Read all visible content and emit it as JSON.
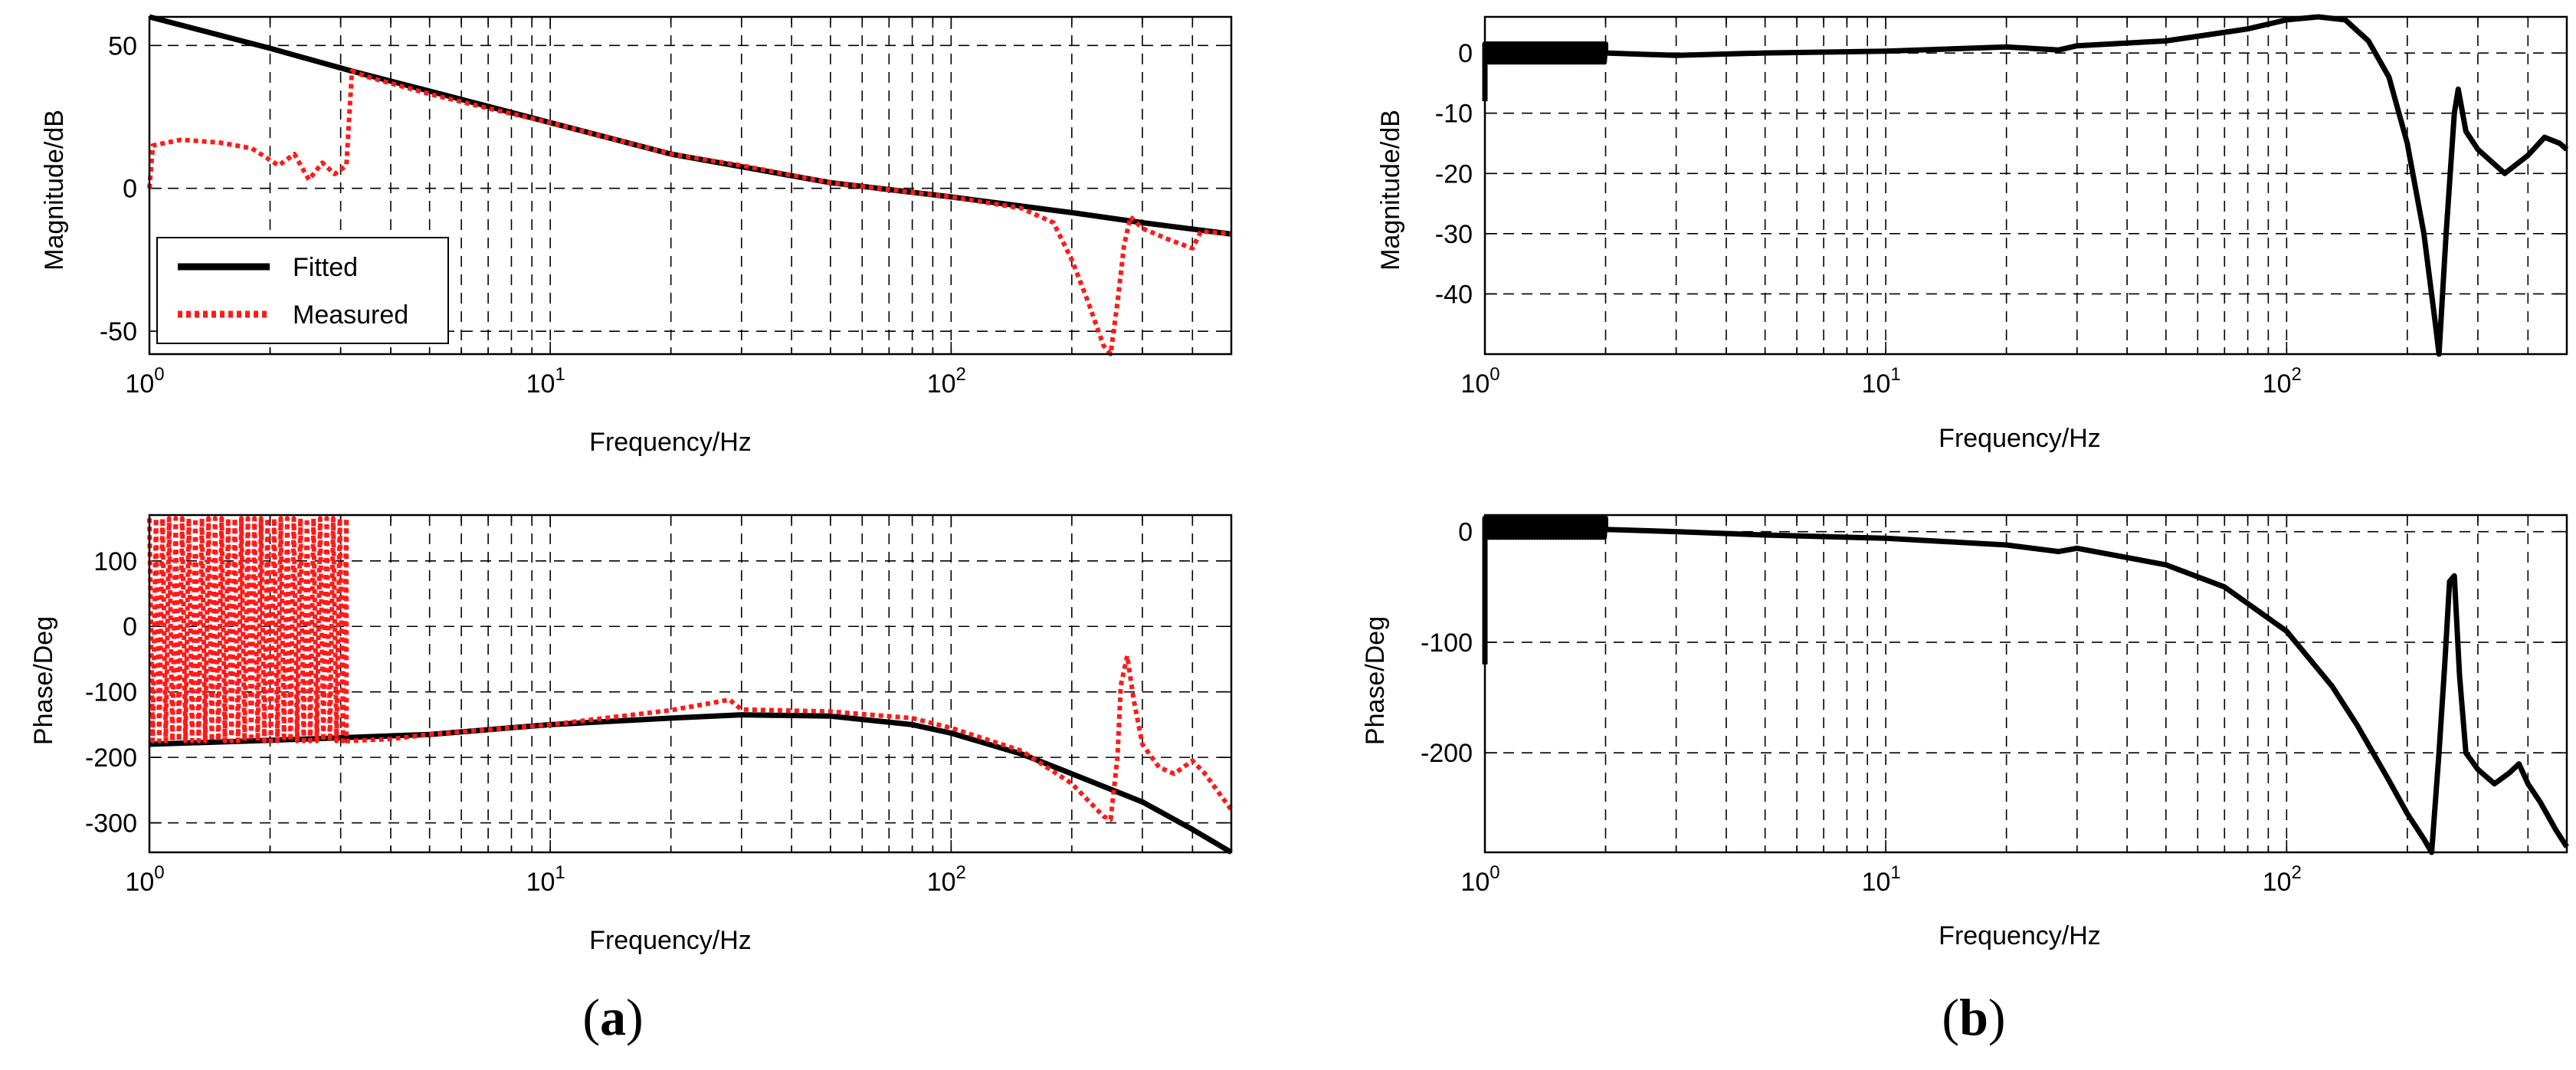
{
  "panel_labels": [
    {
      "open": "(",
      "letter": "a",
      "close": ")"
    },
    {
      "open": "(",
      "letter": "b",
      "close": ")"
    }
  ],
  "colors": {
    "fitted": "#000000",
    "measured": "#ff1a1a",
    "grid": "#000000"
  },
  "chart_data": [
    {
      "id": "a-magnitude",
      "type": "line",
      "xscale": "log",
      "xlim": [
        1,
        500
      ],
      "ylim": [
        -58,
        60
      ],
      "xlabel": "Frequency/Hz",
      "ylabel": "Magnitude/dB",
      "xticks": [
        {
          "v": 1,
          "base": "10",
          "exp": "0"
        },
        {
          "v": 10,
          "base": "10",
          "exp": "1"
        },
        {
          "v": 100,
          "base": "10",
          "exp": "2"
        }
      ],
      "yticks": [
        {
          "v": 50,
          "label": "50"
        },
        {
          "v": 0,
          "label": "0"
        },
        {
          "v": -50,
          "label": "-50"
        }
      ],
      "grid": true,
      "legend": {
        "position": "bottom-left",
        "entries": [
          {
            "name": "Fitted",
            "series": "fitted"
          },
          {
            "name": "Measured",
            "series": "measured"
          }
        ]
      },
      "series": [
        {
          "name": "Fitted",
          "key": "fitted",
          "style": "solid",
          "points": [
            [
              1,
              60
            ],
            [
              2,
              49
            ],
            [
              3.2,
              41
            ],
            [
              5,
              34
            ],
            [
              10,
              23
            ],
            [
              20,
              12
            ],
            [
              50,
              2
            ],
            [
              100,
              -3
            ],
            [
              200,
              -8.5
            ],
            [
              300,
              -12
            ],
            [
              500,
              -16
            ]
          ]
        },
        {
          "name": "Measured",
          "key": "measured",
          "style": "dotted",
          "points": [
            [
              1,
              0
            ],
            [
              1.02,
              15
            ],
            [
              1.2,
              17
            ],
            [
              1.5,
              16
            ],
            [
              1.8,
              14
            ],
            [
              2.1,
              8
            ],
            [
              2.3,
              12
            ],
            [
              2.5,
              3
            ],
            [
              2.7,
              9
            ],
            [
              2.9,
              5
            ],
            [
              3.1,
              8
            ],
            [
              3.2,
              41
            ],
            [
              3.5,
              39
            ],
            [
              5,
              33
            ],
            [
              7,
              28
            ],
            [
              10,
              23
            ],
            [
              20,
              12
            ],
            [
              30,
              8
            ],
            [
              50,
              2
            ],
            [
              100,
              -3
            ],
            [
              150,
              -7
            ],
            [
              180,
              -12
            ],
            [
              200,
              -25
            ],
            [
              220,
              -40
            ],
            [
              240,
              -55
            ],
            [
              250,
              -58
            ],
            [
              260,
              -40
            ],
            [
              270,
              -20
            ],
            [
              280,
              -10
            ],
            [
              300,
              -14
            ],
            [
              350,
              -18
            ],
            [
              400,
              -21
            ],
            [
              420,
              -15
            ],
            [
              500,
              -16
            ]
          ]
        }
      ]
    },
    {
      "id": "a-phase",
      "type": "line",
      "xscale": "log",
      "xlim": [
        1,
        500
      ],
      "ylim": [
        -345,
        170
      ],
      "xlabel": "Frequency/Hz",
      "ylabel": "Phase/Deg",
      "xticks": [
        {
          "v": 1,
          "base": "10",
          "exp": "0"
        },
        {
          "v": 10,
          "base": "10",
          "exp": "1"
        },
        {
          "v": 100,
          "base": "10",
          "exp": "2"
        }
      ],
      "yticks": [
        {
          "v": 100,
          "label": "100"
        },
        {
          "v": 0,
          "label": "0"
        },
        {
          "v": -100,
          "label": "-100"
        },
        {
          "v": -200,
          "label": "-200"
        },
        {
          "v": -300,
          "label": "-300"
        }
      ],
      "grid": true,
      "series": [
        {
          "name": "Fitted",
          "key": "fitted",
          "style": "solid",
          "points": [
            [
              1,
              -180
            ],
            [
              2,
              -174
            ],
            [
              5,
              -165
            ],
            [
              10,
              -150
            ],
            [
              20,
              -140
            ],
            [
              30,
              -135
            ],
            [
              50,
              -137
            ],
            [
              80,
              -150
            ],
            [
              100,
              -163
            ],
            [
              150,
              -195
            ],
            [
              200,
              -225
            ],
            [
              300,
              -268
            ],
            [
              400,
              -310
            ],
            [
              500,
              -345
            ]
          ]
        },
        {
          "name": "Measured",
          "key": "measured",
          "style": "dotted",
          "oscillation_range": [
            1,
            3.1,
            -175,
            165
          ],
          "points": [
            [
              3.1,
              -175
            ],
            [
              4,
              -172
            ],
            [
              5,
              -165
            ],
            [
              10,
              -150
            ],
            [
              20,
              -128
            ],
            [
              28,
              -112
            ],
            [
              30,
              -127
            ],
            [
              50,
              -130
            ],
            [
              80,
              -140
            ],
            [
              100,
              -155
            ],
            [
              150,
              -190
            ],
            [
              200,
              -240
            ],
            [
              240,
              -290
            ],
            [
              250,
              -295
            ],
            [
              260,
              -200
            ],
            [
              265,
              -90
            ],
            [
              275,
              -45
            ],
            [
              285,
              -110
            ],
            [
              300,
              -180
            ],
            [
              330,
              -215
            ],
            [
              360,
              -225
            ],
            [
              400,
              -205
            ],
            [
              430,
              -225
            ],
            [
              500,
              -280
            ]
          ]
        }
      ]
    },
    {
      "id": "b-magnitude",
      "type": "line",
      "xscale": "log",
      "xlim": [
        1,
        500
      ],
      "ylim": [
        -50,
        6
      ],
      "xlabel": "Frequency/Hz",
      "ylabel": "Magnitude/dB",
      "xticks": [
        {
          "v": 1,
          "base": "10",
          "exp": "0"
        },
        {
          "v": 10,
          "base": "10",
          "exp": "1"
        },
        {
          "v": 100,
          "base": "10",
          "exp": "2"
        }
      ],
      "yticks": [
        {
          "v": 0,
          "label": "0"
        },
        {
          "v": -10,
          "label": "-10"
        },
        {
          "v": -20,
          "label": "-20"
        },
        {
          "v": -30,
          "label": "-30"
        },
        {
          "v": -40,
          "label": "-40"
        }
      ],
      "grid": true,
      "series": [
        {
          "name": "",
          "key": "fitted",
          "style": "solid",
          "oscillation_range": [
            1,
            2,
            -1.5,
            1.5
          ],
          "start_dip": [
            1,
            -8
          ],
          "points": [
            [
              2,
              0
            ],
            [
              3,
              -0.4
            ],
            [
              5,
              0
            ],
            [
              10,
              0.3
            ],
            [
              20,
              1
            ],
            [
              27,
              0.5
            ],
            [
              30,
              1.2
            ],
            [
              50,
              2
            ],
            [
              80,
              4
            ],
            [
              100,
              5.5
            ],
            [
              120,
              6
            ],
            [
              140,
              5.5
            ],
            [
              160,
              2
            ],
            [
              180,
              -4
            ],
            [
              200,
              -15
            ],
            [
              220,
              -30
            ],
            [
              235,
              -45
            ],
            [
              240,
              -50
            ],
            [
              250,
              -30
            ],
            [
              262,
              -10
            ],
            [
              268,
              -6
            ],
            [
              280,
              -13
            ],
            [
              300,
              -16
            ],
            [
              350,
              -20
            ],
            [
              400,
              -17
            ],
            [
              440,
              -14
            ],
            [
              480,
              -15
            ],
            [
              500,
              -16
            ]
          ]
        }
      ]
    },
    {
      "id": "b-phase",
      "type": "line",
      "xscale": "log",
      "xlim": [
        1,
        500
      ],
      "ylim": [
        -290,
        15
      ],
      "xlabel": "Frequency/Hz",
      "ylabel": "Phase/Deg",
      "xticks": [
        {
          "v": 1,
          "base": "10",
          "exp": "0"
        },
        {
          "v": 10,
          "base": "10",
          "exp": "1"
        },
        {
          "v": 100,
          "base": "10",
          "exp": "2"
        }
      ],
      "yticks": [
        {
          "v": 0,
          "label": "0"
        },
        {
          "v": -100,
          "label": "-100"
        },
        {
          "v": -200,
          "label": "-200"
        }
      ],
      "grid": true,
      "series": [
        {
          "name": "",
          "key": "fitted",
          "style": "solid",
          "oscillation_range": [
            1,
            2,
            -5,
            12
          ],
          "start_dip": [
            1,
            -120
          ],
          "points": [
            [
              2,
              2
            ],
            [
              3,
              0
            ],
            [
              5,
              -3
            ],
            [
              10,
              -6
            ],
            [
              20,
              -12
            ],
            [
              27,
              -18
            ],
            [
              30,
              -15
            ],
            [
              50,
              -30
            ],
            [
              70,
              -50
            ],
            [
              100,
              -90
            ],
            [
              130,
              -140
            ],
            [
              150,
              -175
            ],
            [
              180,
              -225
            ],
            [
              200,
              -255
            ],
            [
              220,
              -278
            ],
            [
              230,
              -290
            ],
            [
              240,
              -200
            ],
            [
              248,
              -120
            ],
            [
              255,
              -45
            ],
            [
              262,
              -40
            ],
            [
              270,
              -130
            ],
            [
              280,
              -200
            ],
            [
              300,
              -215
            ],
            [
              330,
              -228
            ],
            [
              360,
              -218
            ],
            [
              380,
              -210
            ],
            [
              400,
              -228
            ],
            [
              430,
              -245
            ],
            [
              470,
              -270
            ],
            [
              500,
              -285
            ]
          ]
        }
      ]
    }
  ]
}
